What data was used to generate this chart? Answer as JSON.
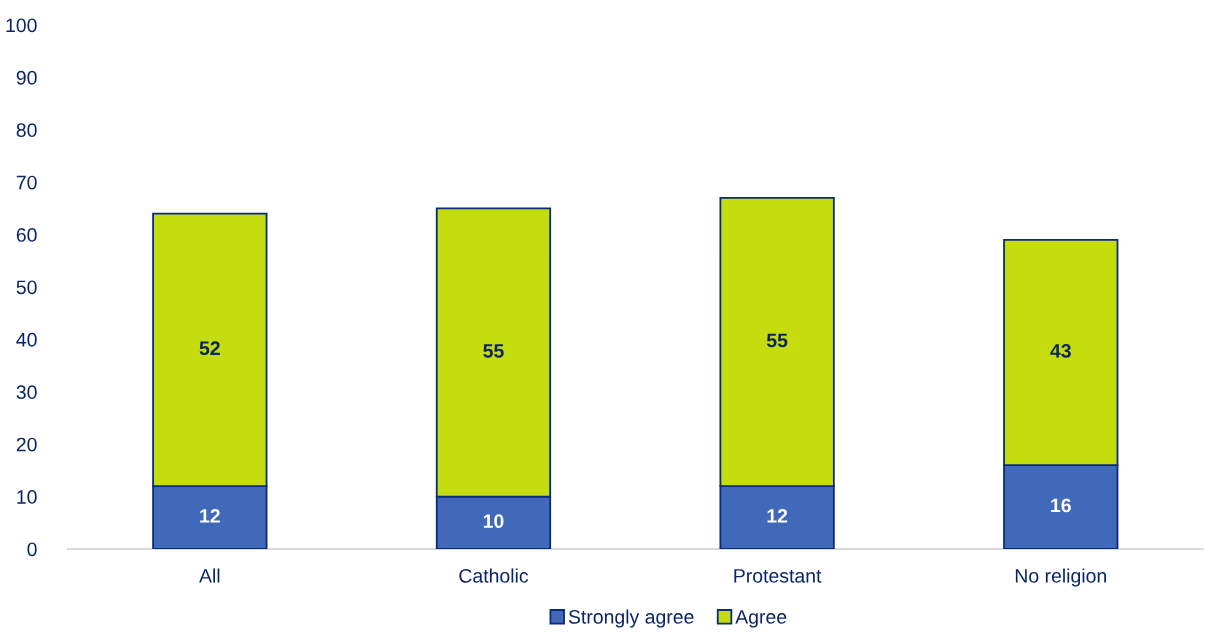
{
  "chart_data": {
    "type": "bar",
    "stacked": true,
    "categories": [
      "All",
      "Catholic",
      "Protestant",
      "No religion"
    ],
    "series": [
      {
        "name": "Strongly agree",
        "color": "#4169b9",
        "values": [
          12,
          10,
          12,
          16
        ]
      },
      {
        "name": "Agree",
        "color": "#c5dc0f",
        "values": [
          52,
          55,
          55,
          43
        ]
      }
    ],
    "ylim": [
      0,
      100
    ],
    "yticks": [
      0,
      10,
      20,
      30,
      40,
      50,
      60,
      70,
      80,
      90,
      100
    ],
    "data_labels": true,
    "legend": "bottom",
    "grid": false
  }
}
